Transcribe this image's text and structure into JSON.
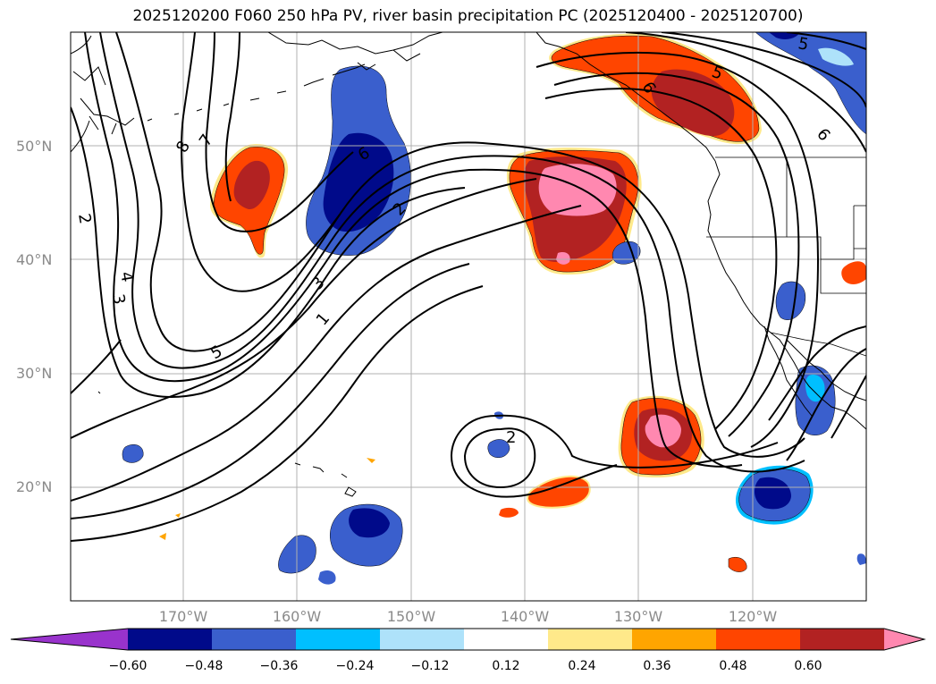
{
  "title": "2025120200 F060 250 hPa PV, river basin precipitation PC (2025120400 - 2025120700)",
  "lat_labels": [
    "50°N",
    "40°N",
    "30°N",
    "20°N"
  ],
  "lon_labels": [
    "170°W",
    "160°W",
    "150°W",
    "140°W",
    "130°W",
    "120°W"
  ],
  "colorbar": {
    "ticks": [
      "−0.60",
      "−0.48",
      "−0.36",
      "−0.24",
      "−0.12",
      "0.12",
      "0.24",
      "0.36",
      "0.48",
      "0.60"
    ],
    "colors": [
      "#9933cc",
      "#000a8a",
      "#3a5fcd",
      "#00bfff",
      "#aee2fa",
      "#ffffff",
      "#ffe98a",
      "#ffa500",
      "#ff4500",
      "#b22222",
      "#ff88b0"
    ]
  },
  "contour_labels": [
    "8",
    "7",
    "6",
    "5",
    "4",
    "3",
    "2",
    "1",
    "2",
    "3",
    "5",
    "2",
    "5",
    "6",
    "6"
  ]
}
